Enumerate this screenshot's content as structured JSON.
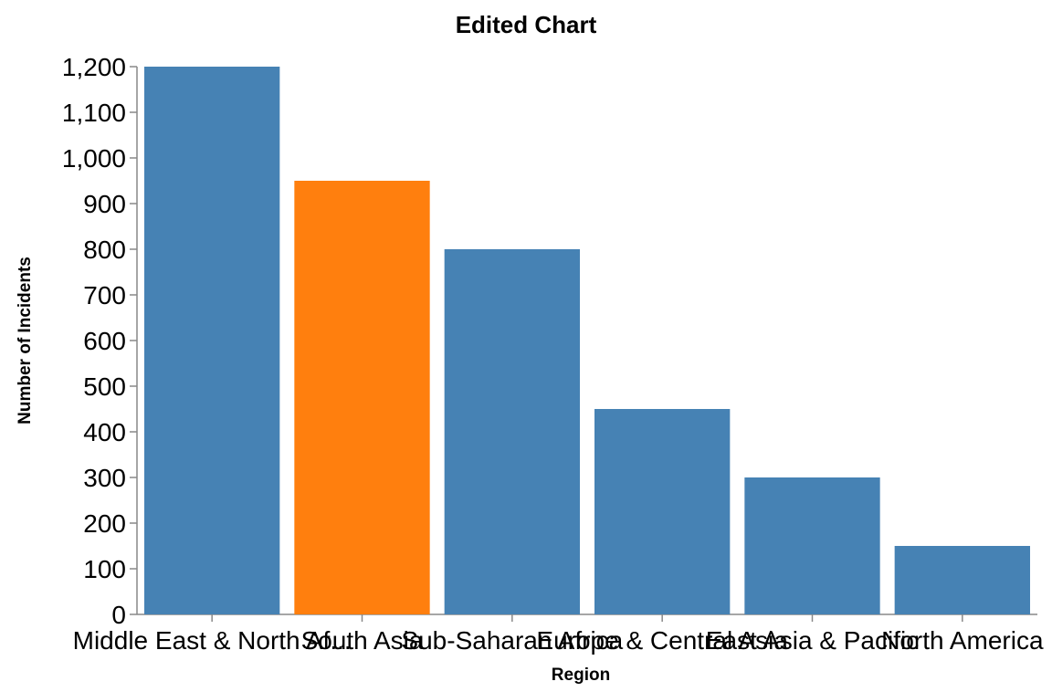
{
  "chart_data": {
    "type": "bar",
    "title": "Edited Chart",
    "xlabel": "Region",
    "ylabel": "Number of Incidents",
    "categories": [
      "Middle East & North Af...",
      "South Asia",
      "Sub-Saharan Africa",
      "Europe & Central Asia",
      "East Asia & Pacific",
      "North America"
    ],
    "values": [
      1200,
      950,
      800,
      450,
      300,
      150
    ],
    "bar_colors": [
      "#4682b4",
      "#ff7f0e",
      "#4682b4",
      "#4682b4",
      "#4682b4",
      "#4682b4"
    ],
    "ylim": [
      0,
      1200
    ],
    "yticks": [
      0,
      100,
      200,
      300,
      400,
      500,
      600,
      700,
      800,
      900,
      1000,
      1100,
      1200
    ],
    "ytick_labels": [
      "0",
      "100",
      "200",
      "300",
      "400",
      "500",
      "600",
      "700",
      "800",
      "900",
      "1,000",
      "1,100",
      "1,200"
    ],
    "grid": false,
    "legend": "none"
  }
}
